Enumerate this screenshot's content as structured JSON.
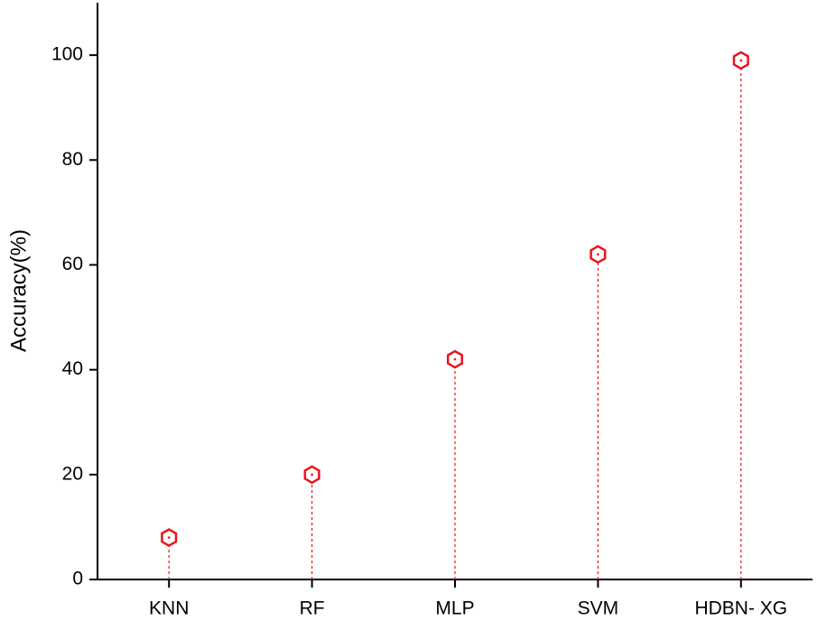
{
  "chart_data": {
    "type": "lollipop",
    "y_label": "Accuracy(%)",
    "categories": [
      "KNN",
      "RF",
      "MLP",
      "SVM",
      "HDBN- XG"
    ],
    "values": [
      8,
      20,
      42,
      62,
      99
    ],
    "color": "#e8141b",
    "ylim": [
      0,
      110
    ],
    "yticks": [
      0,
      20,
      40,
      60,
      80,
      100
    ],
    "grid": false
  }
}
